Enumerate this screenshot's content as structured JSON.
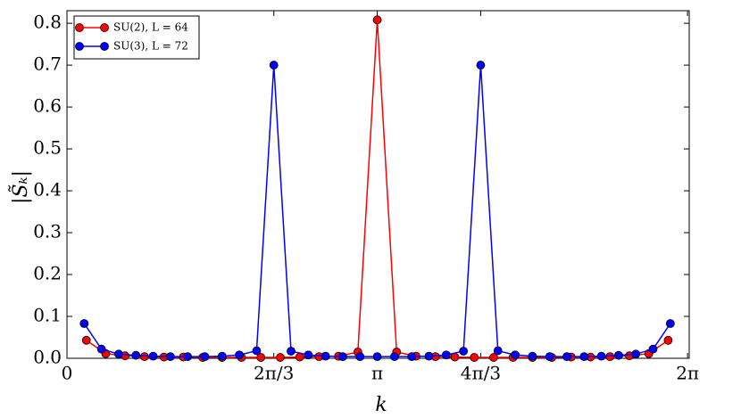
{
  "chart_data": {
    "type": "line",
    "xlabel": "k",
    "ylabel": "|S̃ₖ|",
    "xlim": [
      0,
      6.3
    ],
    "ylim": [
      0,
      0.83
    ],
    "xticks": [
      0,
      {
        "value": 2.0944,
        "label": "2π/3"
      },
      {
        "value": 3.1416,
        "label": "π"
      },
      {
        "value": 4.1888,
        "label": "4π/3"
      },
      {
        "value": 6.2832,
        "label": "2π"
      }
    ],
    "yticks": [
      {
        "value": 0,
        "label": "0.0"
      },
      0.1,
      0.2,
      0.3,
      0.4,
      0.5,
      0.6,
      0.7,
      0.8
    ],
    "legend": "upper left",
    "series": [
      {
        "name": "SU(2), L = 64",
        "color": "#ff0000",
        "x": [
          0.1963,
          0.3927,
          0.589,
          0.7854,
          0.9817,
          1.1781,
          1.3744,
          1.5708,
          1.7671,
          1.9635,
          2.1598,
          2.3562,
          2.5525,
          2.7489,
          2.9452,
          3.1416,
          3.3379,
          3.5343,
          3.7306,
          3.927,
          4.1233,
          4.3197,
          4.516,
          4.7124,
          4.9087,
          5.1051,
          5.3014,
          5.4978,
          5.6941,
          5.8905,
          6.0868
        ],
        "values": [
          0.043,
          0.011,
          0.006,
          0.004,
          0.003,
          0.003,
          0.002,
          0.002,
          0.002,
          0.002,
          0.002,
          0.003,
          0.004,
          0.005,
          0.015,
          0.808,
          0.015,
          0.005,
          0.004,
          0.003,
          0.002,
          0.002,
          0.002,
          0.002,
          0.002,
          0.003,
          0.003,
          0.004,
          0.006,
          0.011,
          0.043
        ]
      },
      {
        "name": "SU(3), L = 72",
        "color": "#0000ff",
        "x": [
          0.1745,
          0.3491,
          0.5236,
          0.6981,
          0.8727,
          1.0472,
          1.2217,
          1.3963,
          1.5708,
          1.7453,
          1.9199,
          2.0944,
          2.2689,
          2.4435,
          2.618,
          2.7925,
          2.9671,
          3.1416,
          3.3161,
          3.4907,
          3.6652,
          3.8397,
          4.0143,
          4.1888,
          4.3633,
          4.5379,
          4.7124,
          4.8869,
          5.0615,
          5.236,
          5.4105,
          5.5851,
          5.7596,
          5.9341,
          6.1087
        ],
        "values": [
          0.083,
          0.022,
          0.01,
          0.007,
          0.005,
          0.004,
          0.004,
          0.004,
          0.005,
          0.008,
          0.018,
          0.7,
          0.017,
          0.008,
          0.005,
          0.004,
          0.004,
          0.004,
          0.004,
          0.004,
          0.005,
          0.008,
          0.017,
          0.7,
          0.018,
          0.008,
          0.005,
          0.004,
          0.004,
          0.004,
          0.005,
          0.007,
          0.01,
          0.022,
          0.083
        ]
      }
    ]
  }
}
